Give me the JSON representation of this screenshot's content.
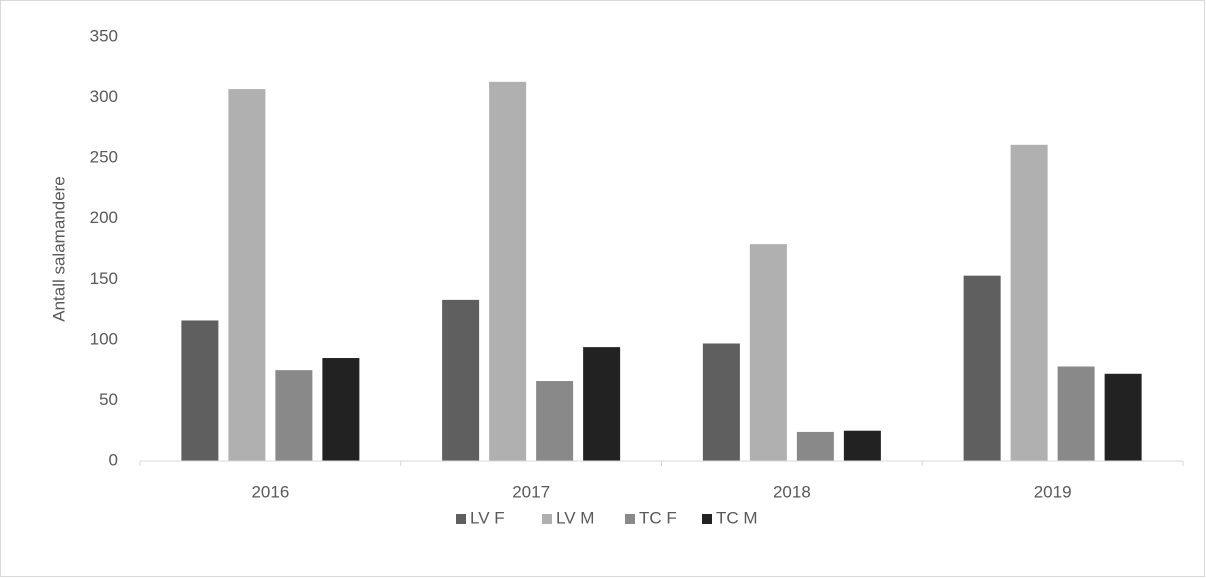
{
  "chart_data": {
    "type": "bar",
    "y_label": "Antall salamandere",
    "categories": [
      "2016",
      "2017",
      "2018",
      "2019"
    ],
    "series": [
      {
        "name": "LV F",
        "color": "#5f5f5f",
        "values": [
          116,
          133,
          97,
          153
        ]
      },
      {
        "name": "LV M",
        "color": "#b0b0b0",
        "values": [
          307,
          313,
          179,
          261
        ]
      },
      {
        "name": "TC F",
        "color": "#898989",
        "values": [
          75,
          66,
          24,
          78
        ]
      },
      {
        "name": "TC M",
        "color": "#222222",
        "values": [
          85,
          94,
          25,
          72
        ]
      }
    ],
    "ylim": [
      0,
      350
    ],
    "yticks": [
      0,
      50,
      100,
      150,
      200,
      250,
      300,
      350
    ],
    "grid": false,
    "legend": "bottom"
  }
}
